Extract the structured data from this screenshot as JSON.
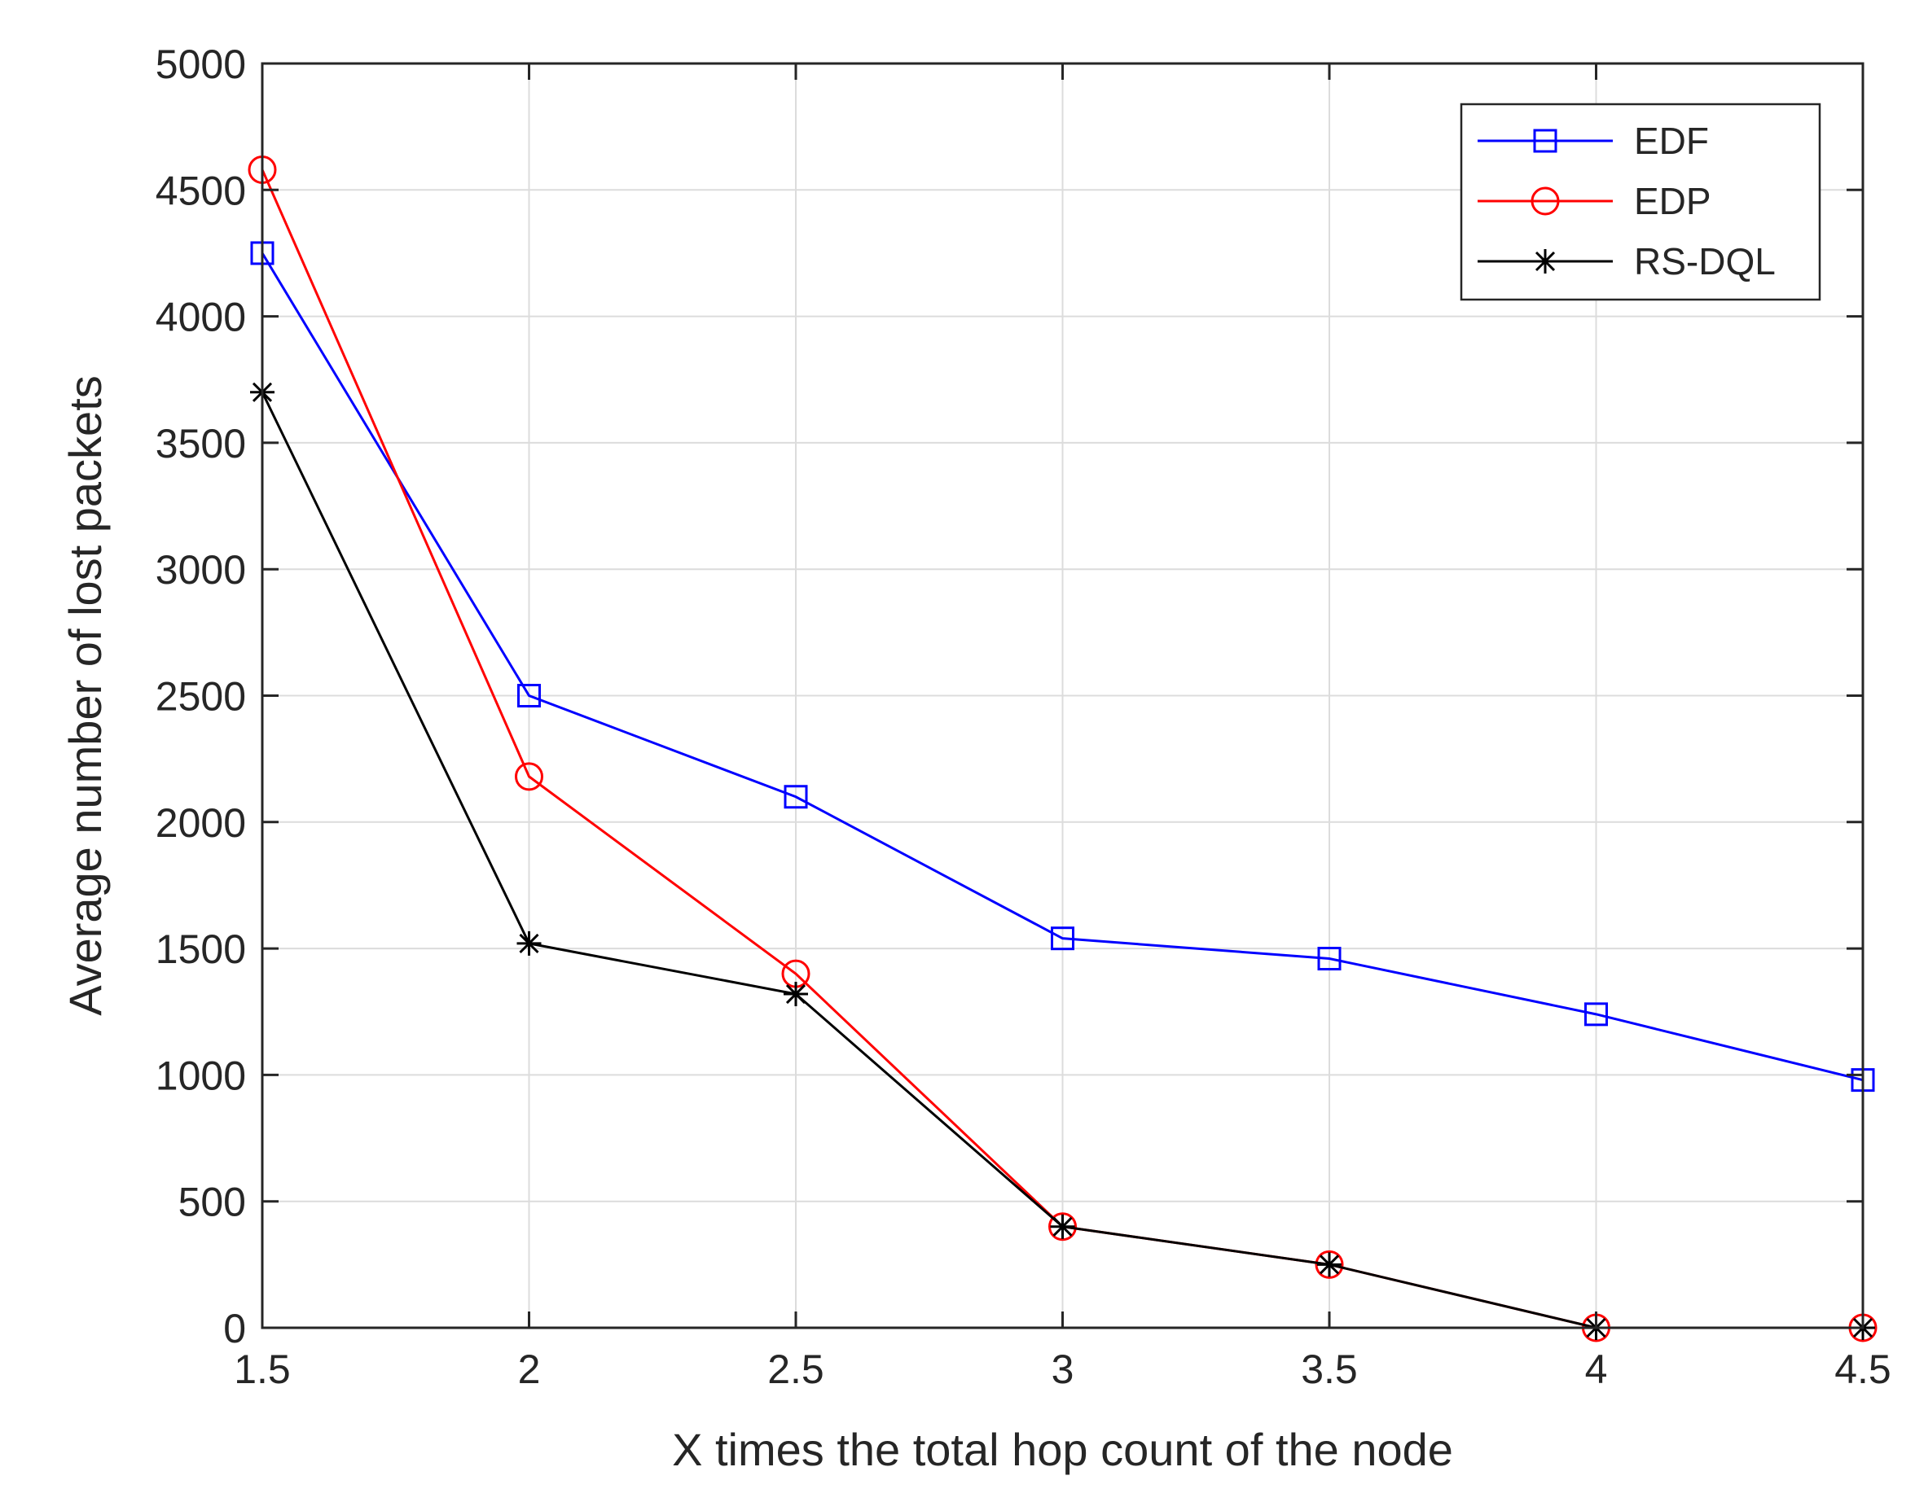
{
  "chart_data": {
    "type": "line",
    "title": "",
    "xlabel": "X times the total hop count of the node",
    "ylabel": "Average number of lost packets",
    "xlim": [
      1.5,
      4.5
    ],
    "ylim": [
      0,
      5000
    ],
    "grid": true,
    "legend_position": "top-right",
    "x_ticks": [
      1.5,
      2,
      2.5,
      3,
      3.5,
      4,
      4.5
    ],
    "y_ticks": [
      0,
      500,
      1000,
      1500,
      2000,
      2500,
      3000,
      3500,
      4000,
      4500,
      5000
    ],
    "x_tick_labels": [
      "1.5",
      "2",
      "2.5",
      "3",
      "3.5",
      "4",
      "4.5"
    ],
    "y_tick_labels": [
      "0",
      "500",
      "1000",
      "1500",
      "2000",
      "2500",
      "3000",
      "3500",
      "4000",
      "4500",
      "5000"
    ],
    "x": [
      1.5,
      2,
      2.5,
      3,
      3.5,
      4,
      4.5
    ],
    "series": [
      {
        "name": "EDF",
        "color": "#0000ff",
        "marker": "square",
        "values": [
          4250,
          2500,
          2100,
          1540,
          1460,
          1240,
          980
        ]
      },
      {
        "name": "EDP",
        "color": "#ff0000",
        "marker": "circle",
        "values": [
          4580,
          2180,
          1400,
          400,
          250,
          0,
          0
        ]
      },
      {
        "name": "RS-DQL",
        "color": "#000000",
        "marker": "asterisk",
        "values": [
          3700,
          1520,
          1320,
          400,
          250,
          0,
          0
        ]
      }
    ]
  }
}
